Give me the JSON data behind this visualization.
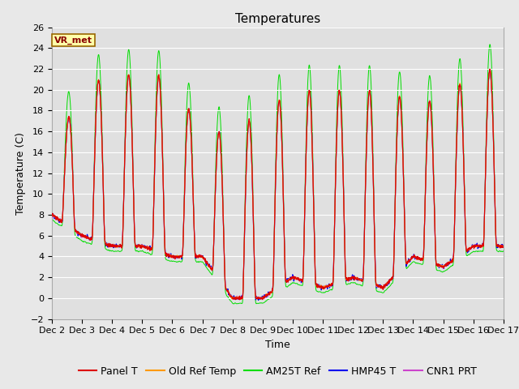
{
  "title": "Temperatures",
  "xlabel": "Time",
  "ylabel": "Temperature (C)",
  "ylim": [
    -2,
    26
  ],
  "yticks": [
    -2,
    0,
    2,
    4,
    6,
    8,
    10,
    12,
    14,
    16,
    18,
    20,
    22,
    24,
    26
  ],
  "xtick_labels": [
    "Dec 2",
    "Dec 3",
    "Dec 4",
    "Dec 5",
    "Dec 6",
    "Dec 7",
    "Dec 8",
    "Dec 9",
    "Dec 10",
    "Dec 11",
    "Dec 12",
    "Dec 13",
    "Dec 14",
    "Dec 15",
    "Dec 16",
    "Dec 17"
  ],
  "line_colors": {
    "panel": "#dd0000",
    "old_ref": "#ff9900",
    "am25t": "#00dd00",
    "hmp45": "#0000ee",
    "cnr1": "#cc44cc"
  },
  "legend_labels": [
    "Panel T",
    "Old Ref Temp",
    "AM25T Ref",
    "HMP45 T",
    "CNR1 PRT"
  ],
  "vr_met_label": "VR_met",
  "vr_met_fg": "#880000",
  "vr_met_bg": "#ffffaa",
  "vr_met_edge": "#996600",
  "fig_bg_color": "#e8e8e8",
  "plot_bg_color": "#e0e0e0",
  "grid_color": "#ffffff",
  "title_fontsize": 11,
  "axis_label_fontsize": 9,
  "tick_fontsize": 8,
  "legend_fontsize": 9
}
